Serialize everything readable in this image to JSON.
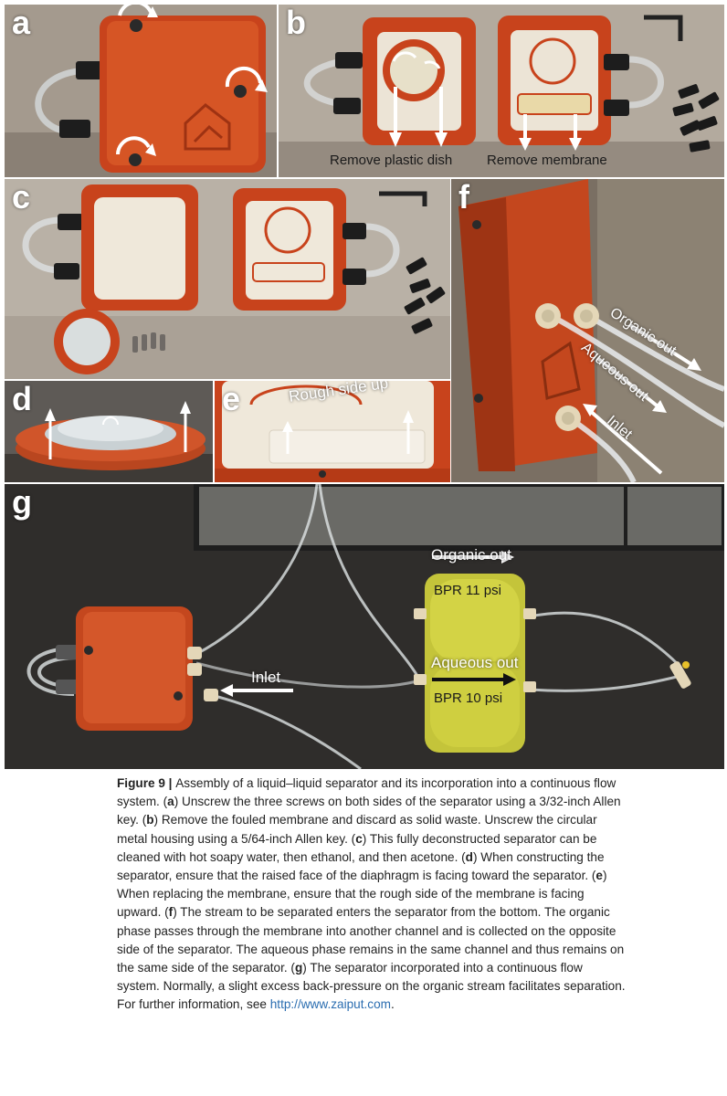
{
  "figure": {
    "panels": {
      "a": {
        "label": "a"
      },
      "b": {
        "label": "b",
        "annotation_dish": "Remove plastic dish",
        "annotation_membrane": "Remove membrane"
      },
      "c": {
        "label": "c"
      },
      "d": {
        "label": "d"
      },
      "e": {
        "label": "e",
        "annotation": "Rough side up"
      },
      "f": {
        "label": "f",
        "organic_out": "Organic out",
        "aqueous_out": "Aqueous out",
        "inlet": "Inlet"
      },
      "g": {
        "label": "g",
        "organic_out": "Organic out",
        "bpr_top": "BPR 11 psi",
        "aqueous_out": "Aqueous out",
        "bpr_bottom": "BPR 10 psi",
        "inlet": "Inlet"
      }
    },
    "caption": {
      "title": "Figure 9 | ",
      "text_1": "Assembly of a liquid–liquid separator and its incorporation into a continuous flow system. (",
      "ref_a": "a",
      "text_2": ") Unscrew the three screws on both sides of the separator using a 3/32-inch Allen key. (",
      "ref_b": "b",
      "text_3": ") Remove the fouled membrane and discard as solid waste. Unscrew the circular metal housing using a 5/64-inch Allen key. (",
      "ref_c": "c",
      "text_4": ") This fully deconstructed separator can be cleaned with hot soapy water, then ethanol, and then acetone. (",
      "ref_d": "d",
      "text_5": ") When constructing the separator, ensure that the raised face of the diaphragm is facing toward the separator. (",
      "ref_e": "e",
      "text_6": ") When replacing the membrane, ensure that the rough side of the membrane is facing upward. (",
      "ref_f": "f",
      "text_7": ") The stream to be separated enters the separator from the bottom. The organic phase passes through the membrane into another channel and is collected on the opposite side of the separator. The aqueous phase remains in the same channel and thus remains on the same side of the separator. (",
      "ref_g": "g",
      "text_8": ") The separator incorporated into a continuous flow system. Normally, a slight excess back-pressure on the organic stream facilitates separation. For further information, see ",
      "url": "http://www.zaiput.com",
      "text_9": "."
    }
  }
}
